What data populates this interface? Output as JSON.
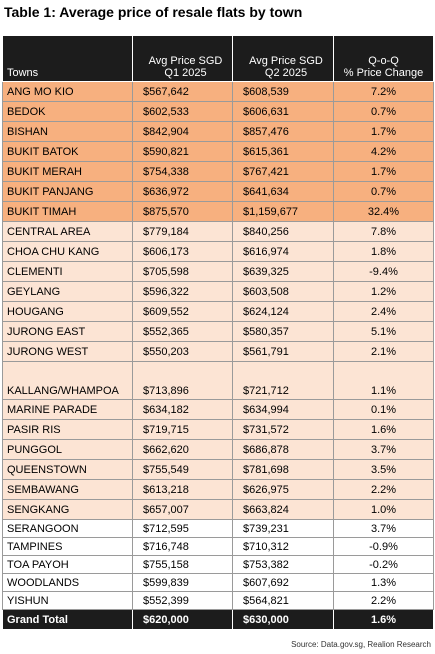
{
  "title": "Table 1: Average price of resale flats by town",
  "table": {
    "columns": [
      [
        "Towns"
      ],
      [
        "Avg Price SGD",
        "Q1 2025"
      ],
      [
        "Avg Price SGD",
        "Q2 2025"
      ],
      [
        "Q-o-Q",
        "% Price Change"
      ]
    ],
    "rows": [
      [
        "ANG MO KIO",
        "$567,642",
        "$608,539",
        "7.2%"
      ],
      [
        "BEDOK",
        "$602,533",
        "$606,631",
        "0.7%"
      ],
      [
        "BISHAN",
        "$842,904",
        "$857,476",
        "1.7%"
      ],
      [
        "BUKIT BATOK",
        "$590,821",
        "$615,361",
        "4.2%"
      ],
      [
        "BUKIT MERAH",
        "$754,338",
        "$767,421",
        "1.7%"
      ],
      [
        "BUKIT PANJANG",
        "$636,972",
        "$641,634",
        "0.7%"
      ],
      [
        "BUKIT TIMAH",
        "$875,570",
        "$1,159,677",
        "32.4%"
      ],
      [
        "CENTRAL AREA",
        "$779,184",
        "$840,256",
        "7.8%"
      ],
      [
        "CHOA CHU KANG",
        "$606,173",
        "$616,974",
        "1.8%"
      ],
      [
        "CLEMENTI",
        "$705,598",
        "$639,325",
        "-9.4%"
      ],
      [
        "GEYLANG",
        "$596,322",
        "$603,508",
        "1.2%"
      ],
      [
        "HOUGANG",
        "$609,552",
        "$624,124",
        "2.4%"
      ],
      [
        "JURONG EAST",
        "$552,365",
        "$580,357",
        "5.1%"
      ],
      [
        "JURONG WEST",
        "$550,203",
        "$561,791",
        "2.1%"
      ],
      [
        "KALLANG/WHAMPOA",
        "$713,896",
        "$721,712",
        "1.1%"
      ],
      [
        "MARINE PARADE",
        "$634,182",
        "$634,994",
        "0.1%"
      ],
      [
        "PASIR RIS",
        "$719,715",
        "$731,572",
        "1.6%"
      ],
      [
        "PUNGGOL",
        "$662,620",
        "$686,878",
        "3.7%"
      ],
      [
        "QUEENSTOWN",
        "$755,549",
        "$781,698",
        "3.5%"
      ],
      [
        "SEMBAWANG",
        "$613,218",
        "$626,975",
        "2.2%"
      ],
      [
        "SENGKANG",
        "$657,007",
        "$663,824",
        "1.0%"
      ],
      [
        "SERANGOON",
        "$712,595",
        "$739,231",
        "3.7%"
      ],
      [
        "TAMPINES",
        "$716,748",
        "$710,312",
        "-0.9%"
      ],
      [
        "TOA PAYOH",
        "$755,158",
        "$753,382",
        "-0.2%"
      ],
      [
        "WOODLANDS",
        "$599,839",
        "$607,692",
        "1.3%"
      ],
      [
        "YISHUN",
        "$552,399",
        "$564,821",
        "2.2%"
      ]
    ],
    "total": [
      "Grand Total",
      "$620,000",
      "$630,000",
      "1.6%"
    ]
  },
  "source": "Source: Data.gov.sg, Realion Research"
}
